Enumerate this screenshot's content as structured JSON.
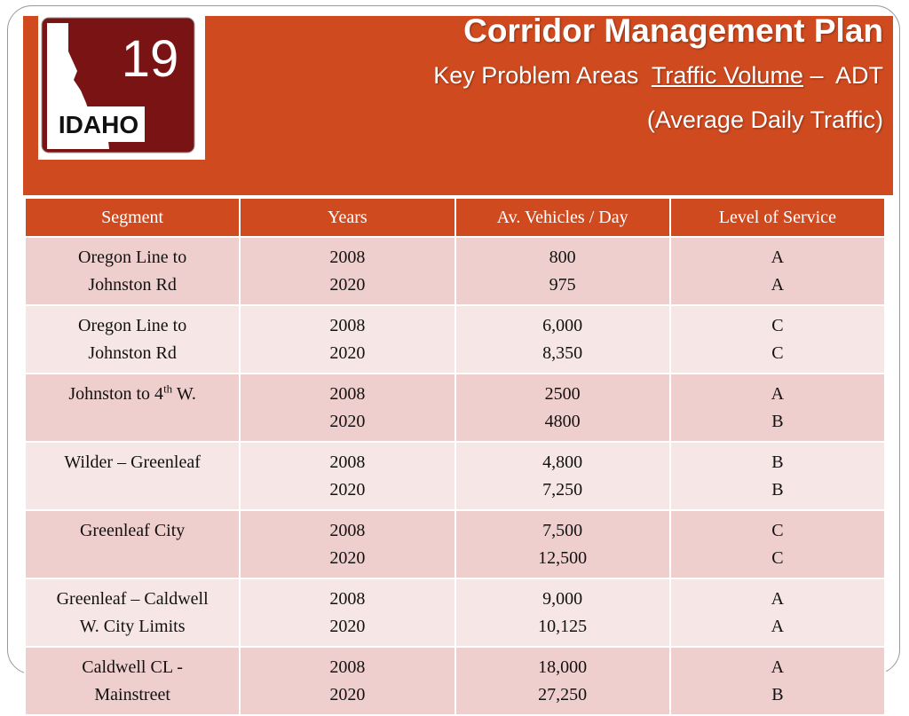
{
  "header": {
    "title": "Corridor Management Plan",
    "subtitle_lead": "Key Problem Areas",
    "subtitle_link": "Traffic Volume",
    "subtitle_tail": "–  ADT",
    "subtitle_line2": "(Average Daily Traffic)"
  },
  "logo": {
    "number": "19",
    "state": "IDAHO"
  },
  "table": {
    "columns": [
      "Segment",
      "Years",
      "Av. Vehicles / Day",
      "Level  of Service"
    ],
    "rows": [
      {
        "segment": [
          "Oregon Line to",
          "Johnston  Rd"
        ],
        "years": [
          "2008",
          "2020"
        ],
        "vehicles": [
          "800",
          "975"
        ],
        "los": [
          "A",
          "A"
        ]
      },
      {
        "segment": [
          "Oregon Line to",
          "Johnston  Rd"
        ],
        "years": [
          "2008",
          "2020"
        ],
        "vehicles": [
          "6,000",
          "8,350"
        ],
        "los": [
          "C",
          "C"
        ]
      },
      {
        "segment": [
          "Johnston to 4"
        ],
        "segment_sup": "th",
        "segment_tail": "W.",
        "years": [
          "2008",
          "2020"
        ],
        "vehicles": [
          "2500",
          "4800"
        ],
        "los": [
          "A",
          "B"
        ]
      },
      {
        "segment": [
          "Wilder – Greenleaf"
        ],
        "years": [
          "2008",
          "2020"
        ],
        "vehicles": [
          "4,800",
          "7,250"
        ],
        "los": [
          "B",
          "B"
        ]
      },
      {
        "segment": [
          "Greenleaf City"
        ],
        "years": [
          "2008",
          "2020"
        ],
        "vehicles": [
          "7,500",
          "12,500"
        ],
        "los": [
          "C",
          "C"
        ]
      },
      {
        "segment": [
          "Greenleaf – Caldwell",
          "W. City Limits"
        ],
        "years": [
          "2008",
          "2020"
        ],
        "vehicles": [
          "9,000",
          "10,125"
        ],
        "los": [
          "A",
          "A"
        ]
      },
      {
        "segment": [
          "Caldwell CL -",
          "Mainstreet"
        ],
        "years": [
          "2008",
          "2020"
        ],
        "vehicles": [
          "18,000",
          "27,250"
        ],
        "los": [
          "A",
          "B"
        ]
      }
    ]
  }
}
